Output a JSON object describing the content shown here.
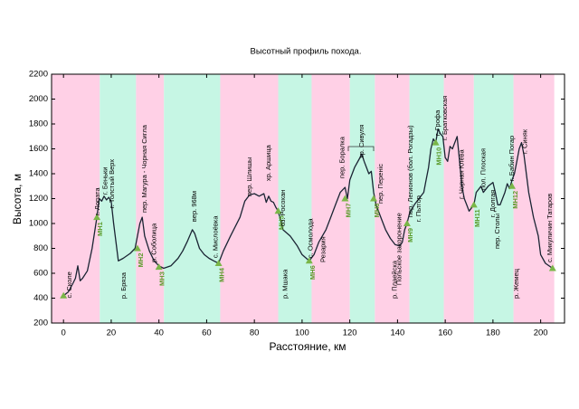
{
  "chart_data": {
    "type": "line",
    "title": "Высотный профиль похода.",
    "x_label": "Расстояние, км",
    "y_label": "Высота, м",
    "xlim": [
      -5,
      210
    ],
    "ylim": [
      200,
      2200
    ],
    "xticks": [
      0,
      20,
      40,
      60,
      80,
      100,
      120,
      140,
      160,
      180,
      200
    ],
    "yticks": [
      200,
      400,
      600,
      800,
      1000,
      1200,
      1400,
      1600,
      1800,
      2000,
      2200
    ],
    "color": "#1a2433",
    "marker_color": "#7ab648",
    "bands": [
      {
        "start": -5,
        "end": 15.2,
        "color": "#ffd0e6"
      },
      {
        "start": 15.2,
        "end": 30.4,
        "color": "#c6f6e4"
      },
      {
        "start": 30.4,
        "end": 42.1,
        "color": "#ffd0e6"
      },
      {
        "start": 42.1,
        "end": 65.7,
        "color": "#c6f6e4"
      },
      {
        "start": 65.7,
        "end": 90,
        "color": "#ffd0e6"
      },
      {
        "start": 90,
        "end": 104,
        "color": "#c6f6e4"
      },
      {
        "start": 104,
        "end": 120,
        "color": "#ffd0e6"
      },
      {
        "start": 120,
        "end": 130.5,
        "color": "#c6f6e4"
      },
      {
        "start": 130.5,
        "end": 145,
        "color": "#ffd0e6"
      },
      {
        "start": 145,
        "end": 159.4,
        "color": "#c6f6e4"
      },
      {
        "start": 159.4,
        "end": 172,
        "color": "#ffd0e6"
      },
      {
        "start": 172,
        "end": 188.6,
        "color": "#c6f6e4"
      },
      {
        "start": 188.6,
        "end": 205.7,
        "color": "#ffd0e6"
      }
    ],
    "profile": {
      "x": [
        0,
        2,
        4,
        5,
        6,
        7,
        8,
        10,
        12,
        14,
        15,
        16,
        17,
        18,
        19,
        20,
        21,
        22,
        23,
        25,
        28,
        30,
        32,
        33,
        34,
        36,
        38,
        40,
        42,
        45,
        48,
        50,
        52,
        54,
        55,
        57,
        59,
        61,
        63,
        65,
        67,
        70,
        74,
        76,
        78,
        80,
        82,
        84,
        85,
        86,
        87,
        88,
        89,
        90,
        92,
        95,
        98,
        100,
        103,
        105,
        107,
        110,
        112,
        114,
        116,
        118,
        119,
        120,
        122,
        124,
        125,
        126,
        127,
        128,
        129,
        130,
        131,
        133,
        135,
        137,
        139,
        141,
        142,
        143,
        144,
        145,
        147,
        149,
        151,
        152,
        153,
        154,
        155,
        156,
        157,
        158,
        159,
        160,
        161,
        162,
        163,
        165,
        166,
        167,
        168,
        169,
        170,
        172,
        173,
        175,
        176,
        178,
        180,
        181,
        182,
        183,
        185,
        186,
        187,
        188,
        189,
        190,
        191,
        192,
        193,
        194,
        195,
        197,
        199,
        200,
        202,
        205
      ],
      "y": [
        420,
        450,
        520,
        560,
        660,
        540,
        560,
        620,
        800,
        1050,
        1200,
        1180,
        1220,
        1190,
        1210,
        1180,
        1000,
        850,
        700,
        720,
        760,
        800,
        1000,
        1050,
        900,
        780,
        700,
        660,
        640,
        660,
        720,
        780,
        860,
        950,
        920,
        800,
        750,
        720,
        700,
        680,
        780,
        900,
        1050,
        1180,
        1230,
        1240,
        1220,
        1240,
        1170,
        1220,
        1180,
        1170,
        1130,
        1100,
        950,
        900,
        820,
        750,
        700,
        750,
        850,
        950,
        1050,
        1150,
        1250,
        1290,
        1200,
        1350,
        1450,
        1520,
        1560,
        1500,
        1450,
        1400,
        1420,
        1250,
        1150,
        1050,
        950,
        880,
        830,
        820,
        850,
        950,
        1000,
        1080,
        1150,
        1200,
        1250,
        1350,
        1450,
        1600,
        1680,
        1650,
        1760,
        1720,
        1700,
        1530,
        1500,
        1620,
        1600,
        1700,
        1500,
        1300,
        1200,
        1150,
        1100,
        1150,
        1250,
        1300,
        1250,
        1300,
        1330,
        1250,
        1150,
        1150,
        1250,
        1320,
        1280,
        1350,
        1400,
        1500,
        1600,
        1650,
        1550,
        1400,
        1250,
        1050,
        900,
        750,
        680,
        640
      ]
    },
    "endpoints": [
      {
        "x": 0,
        "y": 420
      },
      {
        "x": 205,
        "y": 640
      }
    ],
    "markers": [
      {
        "name": "МН1",
        "x": 14,
        "y": 1050
      },
      {
        "name": "МН2",
        "x": 31,
        "y": 800
      },
      {
        "name": "МН3",
        "x": 40,
        "y": 650
      },
      {
        "name": "МН4",
        "x": 65,
        "y": 680
      },
      {
        "name": "МН5",
        "x": 90,
        "y": 1100
      },
      {
        "name": "МН6",
        "x": 103,
        "y": 700
      },
      {
        "name": "МН7",
        "x": 118,
        "y": 1200
      },
      {
        "name": "МН8",
        "x": 130,
        "y": 1200
      },
      {
        "name": "МН9",
        "x": 144,
        "y": 1000
      },
      {
        "name": "МН10",
        "x": 156,
        "y": 1650
      },
      {
        "name": "МН11",
        "x": 172,
        "y": 1150
      },
      {
        "name": "МН12",
        "x": 188,
        "y": 1300
      }
    ],
    "annotations": [
      {
        "text": "с. Сколе",
        "x": 2.6,
        "y": 400
      },
      {
        "text": "г. Лопата",
        "x": 14.4,
        "y": 1065
      },
      {
        "text": "г. Беньки",
        "x": 17.5,
        "y": 1232
      },
      {
        "text": "г. Толстый Верх",
        "x": 20.5,
        "y": 1123
      },
      {
        "text": "р. Бряза",
        "x": 25.4,
        "y": 396
      },
      {
        "text": "пер. Магура - Чорная Сигла",
        "x": 34,
        "y": 1087
      },
      {
        "text": "р. Соболица",
        "x": 38,
        "y": 687
      },
      {
        "text": "вер. 968м",
        "x": 55,
        "y": 1014
      },
      {
        "text": "с. Мислоёвка",
        "x": 63.8,
        "y": 723
      },
      {
        "text": "пер. Шлишы",
        "x": 78,
        "y": 1218
      },
      {
        "text": "хр. Аршица",
        "x": 86,
        "y": 1341
      },
      {
        "text": "оз. Росохан",
        "x": 92,
        "y": 978
      },
      {
        "text": "р. Мшака",
        "x": 93,
        "y": 396
      },
      {
        "text": "с. Осмолода",
        "x": 103.6,
        "y": 723
      },
      {
        "text": "Резария",
        "x": 109,
        "y": 687
      },
      {
        "text": "пер. Боралка",
        "x": 117,
        "y": 1363
      },
      {
        "text": "хр. Сивуля",
        "x": 125,
        "y": 1523
      },
      {
        "text": "пер. Переніс",
        "x": 133,
        "y": 1160
      },
      {
        "text": "р. Плаейска",
        "x": 139,
        "y": 396
      },
      {
        "text": "Польское захоронение",
        "x": 140.8,
        "y": 505
      },
      {
        "text": "пер. Легионов (бол. Рогадзы)",
        "x": 145.5,
        "y": 1050
      },
      {
        "text": "г. Пьтгор",
        "x": 149,
        "y": 1014
      },
      {
        "text": "г. Грофа",
        "x": 157,
        "y": 1705
      },
      {
        "text": "г. Братковская",
        "x": 160,
        "y": 1669
      },
      {
        "text": "г. Чорная Клева",
        "x": 167,
        "y": 1196
      },
      {
        "text": "пол. Плоская",
        "x": 176,
        "y": 1269
      },
      {
        "text": "г. Долгая",
        "x": 180,
        "y": 1050
      },
      {
        "text": "пер. Столы",
        "x": 182,
        "y": 796
      },
      {
        "text": "г. Бабин Погар",
        "x": 188,
        "y": 1341
      },
      {
        "text": "р. Жемец",
        "x": 190,
        "y": 396
      },
      {
        "text": "г. Синяк",
        "x": 193.5,
        "y": 1560
      },
      {
        "text": "с. Микуличин Татаров",
        "x": 204,
        "y": 687
      }
    ]
  }
}
